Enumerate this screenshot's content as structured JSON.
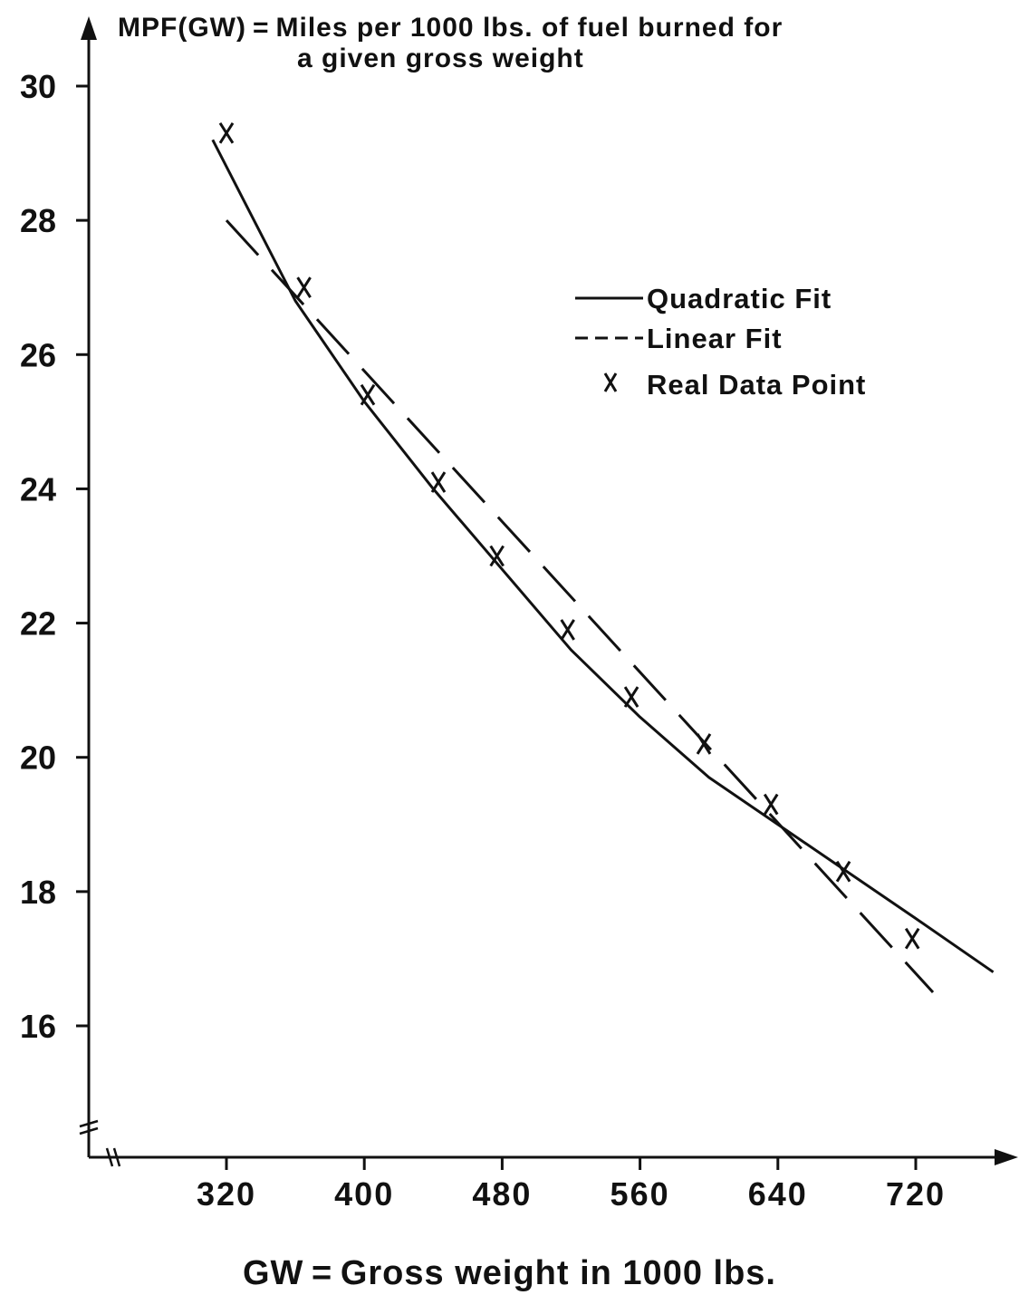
{
  "chart_data": {
    "type": "line",
    "title": "MPF(GW) = Miles per 1000 lbs. of fuel burned for",
    "title_line2": "a given gross weight",
    "xlabel": "GW = Gross weight in 1000 lbs.",
    "ylabel": "",
    "xlim": [
      240,
      790
    ],
    "ylim": [
      14,
      31
    ],
    "x_ticks": [
      320,
      400,
      480,
      560,
      640,
      720
    ],
    "x_tick_labels": [
      "320",
      "400",
      "480",
      "560",
      "640",
      "720"
    ],
    "y_ticks": [
      16,
      18,
      20,
      22,
      24,
      26,
      28,
      30
    ],
    "y_tick_labels": [
      "16",
      "18",
      "20",
      "22",
      "24",
      "26",
      "28",
      "30"
    ],
    "axis_breaks": true,
    "grid": false,
    "legend_position": "top-right",
    "legend": [
      {
        "label": "Quadratic Fit",
        "marker": "solid-line"
      },
      {
        "label": "Linear Fit",
        "marker": "dashed-line"
      },
      {
        "label": "Real Data Point",
        "marker": "x"
      }
    ],
    "series": [
      {
        "name": "Quadratic Fit",
        "style": "solid",
        "x": [
          312,
          330,
          360,
          400,
          440,
          480,
          520,
          560,
          600,
          640,
          680,
          720,
          765
        ],
        "y": [
          29.2,
          28.3,
          26.8,
          25.3,
          24.0,
          22.8,
          21.6,
          20.6,
          19.7,
          19.0,
          18.3,
          17.6,
          16.8
        ]
      },
      {
        "name": "Linear Fit",
        "style": "dashed",
        "x": [
          320,
          730
        ],
        "y": [
          28.0,
          16.5
        ]
      },
      {
        "name": "Real Data Point",
        "style": "marker-x",
        "x": [
          320,
          365,
          402,
          443,
          477,
          518,
          555,
          597,
          636,
          678,
          718
        ],
        "y": [
          29.3,
          27.0,
          25.4,
          24.1,
          23.0,
          21.9,
          20.9,
          20.2,
          19.3,
          18.3,
          17.3
        ]
      }
    ]
  }
}
